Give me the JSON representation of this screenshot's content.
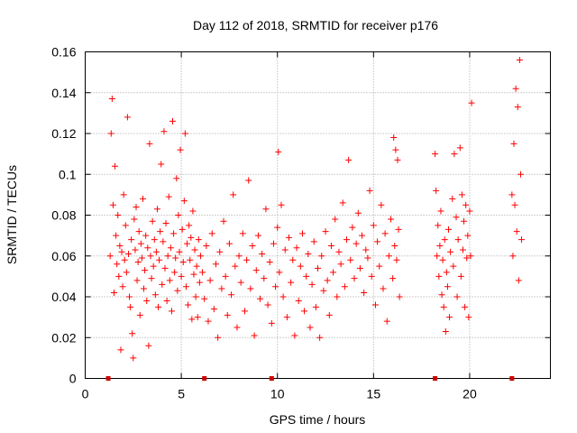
{
  "chart_data": {
    "type": "scatter",
    "title": "Day 112 of 2018, SRMTID for receiver p176",
    "xlabel": "GPS time / hours",
    "ylabel": "SRMTID / TECUs",
    "xlim": [
      0,
      24.2
    ],
    "ylim": [
      0,
      0.16
    ],
    "xticks": [
      0,
      5,
      10,
      15,
      20
    ],
    "xtick_labels": [
      "0",
      "5",
      "10",
      "15",
      "20"
    ],
    "yticks": [
      0,
      0.02,
      0.04,
      0.06,
      0.08,
      0.1,
      0.12,
      0.14,
      0.16
    ],
    "ytick_labels": [
      "0",
      "0.02",
      "0.04",
      "0.06",
      "0.08",
      "0.1",
      "0.12",
      "0.14",
      "0.16"
    ],
    "grid": true,
    "marker": "plus",
    "color": "#ff0000",
    "gap_marker_color": "#cc0000",
    "gap_markers_x": [
      1.2,
      6.2,
      9.7,
      18.2,
      22.2
    ],
    "series": [
      {
        "name": "SRMTID",
        "points": [
          [
            1.3,
            0.06
          ],
          [
            1.35,
            0.12
          ],
          [
            1.4,
            0.137
          ],
          [
            1.45,
            0.085
          ],
          [
            1.5,
            0.042
          ],
          [
            1.55,
            0.104
          ],
          [
            1.6,
            0.07
          ],
          [
            1.65,
            0.056
          ],
          [
            1.7,
            0.08
          ],
          [
            1.75,
            0.05
          ],
          [
            1.8,
            0.065
          ],
          [
            1.85,
            0.014
          ],
          [
            1.9,
            0.062
          ],
          [
            1.95,
            0.045
          ],
          [
            2.0,
            0.09
          ],
          [
            2.05,
            0.058
          ],
          [
            2.1,
            0.075
          ],
          [
            2.15,
            0.052
          ],
          [
            2.2,
            0.128
          ],
          [
            2.25,
            0.061
          ],
          [
            2.3,
            0.04
          ],
          [
            2.35,
            0.035
          ],
          [
            2.4,
            0.068
          ],
          [
            2.45,
            0.022
          ],
          [
            2.5,
            0.01
          ],
          [
            2.55,
            0.078
          ],
          [
            2.6,
            0.063
          ],
          [
            2.65,
            0.084
          ],
          [
            2.7,
            0.048
          ],
          [
            2.75,
            0.057
          ],
          [
            2.8,
            0.072
          ],
          [
            2.85,
            0.031
          ],
          [
            2.9,
            0.066
          ],
          [
            2.95,
            0.059
          ],
          [
            3.0,
            0.088
          ],
          [
            3.05,
            0.044
          ],
          [
            3.1,
            0.053
          ],
          [
            3.15,
            0.07
          ],
          [
            3.2,
            0.038
          ],
          [
            3.25,
            0.064
          ],
          [
            3.3,
            0.016
          ],
          [
            3.35,
            0.115
          ],
          [
            3.4,
            0.06
          ],
          [
            3.45,
            0.049
          ],
          [
            3.5,
            0.077
          ],
          [
            3.55,
            0.055
          ],
          [
            3.6,
            0.068
          ],
          [
            3.65,
            0.041
          ],
          [
            3.7,
            0.062
          ],
          [
            3.75,
            0.083
          ],
          [
            3.8,
            0.035
          ],
          [
            3.85,
            0.058
          ],
          [
            3.9,
            0.072
          ],
          [
            3.95,
            0.105
          ],
          [
            4.0,
            0.046
          ],
          [
            4.05,
            0.067
          ],
          [
            4.1,
            0.121
          ],
          [
            4.15,
            0.054
          ],
          [
            4.2,
            0.076
          ],
          [
            4.25,
            0.038
          ],
          [
            4.3,
            0.06
          ],
          [
            4.35,
            0.089
          ],
          [
            4.4,
            0.048
          ],
          [
            4.45,
            0.064
          ],
          [
            4.5,
            0.033
          ],
          [
            4.55,
            0.126
          ],
          [
            4.6,
            0.071
          ],
          [
            4.65,
            0.052
          ],
          [
            4.7,
            0.059
          ],
          [
            4.75,
            0.098
          ],
          [
            4.8,
            0.043
          ],
          [
            4.85,
            0.08
          ],
          [
            4.9,
            0.062
          ],
          [
            4.95,
            0.112
          ],
          [
            5.0,
            0.05
          ],
          [
            5.05,
            0.073
          ],
          [
            5.1,
            0.057
          ],
          [
            5.15,
            0.087
          ],
          [
            5.2,
            0.12
          ],
          [
            5.25,
            0.045
          ],
          [
            5.3,
            0.066
          ],
          [
            5.35,
            0.036
          ],
          [
            5.4,
            0.075
          ],
          [
            5.45,
            0.058
          ],
          [
            5.5,
            0.069
          ],
          [
            5.55,
            0.029
          ],
          [
            5.6,
            0.082
          ],
          [
            5.65,
            0.051
          ],
          [
            5.7,
            0.063
          ],
          [
            5.75,
            0.04
          ],
          [
            5.8,
            0.055
          ],
          [
            5.85,
            0.03
          ],
          [
            5.9,
            0.068
          ],
          [
            5.95,
            0.047
          ],
          [
            6.0,
            0.06
          ],
          [
            6.1,
            0.052
          ],
          [
            6.2,
            0.039
          ],
          [
            6.3,
            0.065
          ],
          [
            6.4,
            0.028
          ],
          [
            6.5,
            0.048
          ],
          [
            6.6,
            0.071
          ],
          [
            6.7,
            0.034
          ],
          [
            6.8,
            0.056
          ],
          [
            6.9,
            0.02
          ],
          [
            7.0,
            0.062
          ],
          [
            7.1,
            0.044
          ],
          [
            7.2,
            0.077
          ],
          [
            7.3,
            0.05
          ],
          [
            7.4,
            0.031
          ],
          [
            7.5,
            0.066
          ],
          [
            7.6,
            0.041
          ],
          [
            7.7,
            0.09
          ],
          [
            7.8,
            0.055
          ],
          [
            7.9,
            0.025
          ],
          [
            8.0,
            0.06
          ],
          [
            8.1,
            0.047
          ],
          [
            8.2,
            0.071
          ],
          [
            8.3,
            0.033
          ],
          [
            8.4,
            0.058
          ],
          [
            8.5,
            0.097
          ],
          [
            8.6,
            0.044
          ],
          [
            8.7,
            0.065
          ],
          [
            8.8,
            0.021
          ],
          [
            8.9,
            0.053
          ],
          [
            9.0,
            0.07
          ],
          [
            9.1,
            0.039
          ],
          [
            9.2,
            0.061
          ],
          [
            9.3,
            0.049
          ],
          [
            9.4,
            0.083
          ],
          [
            9.5,
            0.036
          ],
          [
            9.6,
            0.057
          ],
          [
            9.7,
            0.027
          ],
          [
            9.8,
            0.066
          ],
          [
            9.9,
            0.045
          ],
          [
            10.0,
            0.074
          ],
          [
            10.05,
            0.111
          ],
          [
            10.1,
            0.052
          ],
          [
            10.2,
            0.085
          ],
          [
            10.3,
            0.04
          ],
          [
            10.4,
            0.063
          ],
          [
            10.5,
            0.03
          ],
          [
            10.6,
            0.069
          ],
          [
            10.7,
            0.047
          ],
          [
            10.8,
            0.058
          ],
          [
            10.9,
            0.021
          ],
          [
            11.0,
            0.064
          ],
          [
            11.1,
            0.038
          ],
          [
            11.2,
            0.055
          ],
          [
            11.3,
            0.071
          ],
          [
            11.4,
            0.033
          ],
          [
            11.5,
            0.05
          ],
          [
            11.6,
            0.061
          ],
          [
            11.7,
            0.025
          ],
          [
            11.8,
            0.046
          ],
          [
            11.9,
            0.067
          ],
          [
            12.0,
            0.035
          ],
          [
            12.1,
            0.054
          ],
          [
            12.2,
            0.02
          ],
          [
            12.3,
            0.06
          ],
          [
            12.4,
            0.043
          ],
          [
            12.5,
            0.072
          ],
          [
            12.6,
            0.048
          ],
          [
            12.7,
            0.031
          ],
          [
            12.8,
            0.065
          ],
          [
            12.9,
            0.052
          ],
          [
            13.0,
            0.078
          ],
          [
            13.1,
            0.04
          ],
          [
            13.2,
            0.062
          ],
          [
            13.3,
            0.056
          ],
          [
            13.4,
            0.086
          ],
          [
            13.5,
            0.045
          ],
          [
            13.6,
            0.068
          ],
          [
            13.7,
            0.107
          ],
          [
            13.8,
            0.058
          ],
          [
            13.9,
            0.074
          ],
          [
            14.0,
            0.049
          ],
          [
            14.1,
            0.066
          ],
          [
            14.2,
            0.081
          ],
          [
            14.3,
            0.054
          ],
          [
            14.4,
            0.07
          ],
          [
            14.5,
            0.042
          ],
          [
            14.6,
            0.063
          ],
          [
            14.7,
            0.059
          ],
          [
            14.8,
            0.092
          ],
          [
            14.9,
            0.05
          ],
          [
            15.0,
            0.075
          ],
          [
            15.1,
            0.036
          ],
          [
            15.2,
            0.067
          ],
          [
            15.3,
            0.055
          ],
          [
            15.4,
            0.085
          ],
          [
            15.5,
            0.044
          ],
          [
            15.6,
            0.071
          ],
          [
            15.7,
            0.028
          ],
          [
            15.8,
            0.06
          ],
          [
            15.9,
            0.078
          ],
          [
            16.0,
            0.049
          ],
          [
            16.05,
            0.118
          ],
          [
            16.1,
            0.065
          ],
          [
            16.15,
            0.112
          ],
          [
            16.2,
            0.058
          ],
          [
            16.25,
            0.107
          ],
          [
            16.3,
            0.073
          ],
          [
            16.35,
            0.04
          ],
          [
            18.2,
            0.11
          ],
          [
            18.25,
            0.092
          ],
          [
            18.3,
            0.06
          ],
          [
            18.35,
            0.075
          ],
          [
            18.4,
            0.05
          ],
          [
            18.45,
            0.065
          ],
          [
            18.5,
            0.082
          ],
          [
            18.55,
            0.041
          ],
          [
            18.6,
            0.058
          ],
          [
            18.65,
            0.035
          ],
          [
            18.7,
            0.068
          ],
          [
            18.75,
            0.023
          ],
          [
            18.8,
            0.052
          ],
          [
            18.85,
            0.045
          ],
          [
            18.9,
            0.073
          ],
          [
            18.95,
            0.03
          ],
          [
            19.0,
            0.062
          ],
          [
            19.1,
            0.088
          ],
          [
            19.15,
            0.055
          ],
          [
            19.2,
            0.11
          ],
          [
            19.3,
            0.079
          ],
          [
            19.35,
            0.04
          ],
          [
            19.4,
            0.068
          ],
          [
            19.5,
            0.113
          ],
          [
            19.55,
            0.05
          ],
          [
            19.6,
            0.09
          ],
          [
            19.65,
            0.063
          ],
          [
            19.7,
            0.077
          ],
          [
            19.75,
            0.035
          ],
          [
            19.8,
            0.085
          ],
          [
            19.85,
            0.059
          ],
          [
            19.9,
            0.07
          ],
          [
            19.95,
            0.03
          ],
          [
            20.0,
            0.082
          ],
          [
            20.05,
            0.06
          ],
          [
            20.1,
            0.135
          ],
          [
            22.2,
            0.09
          ],
          [
            22.25,
            0.06
          ],
          [
            22.3,
            0.115
          ],
          [
            22.35,
            0.085
          ],
          [
            22.4,
            0.142
          ],
          [
            22.45,
            0.072
          ],
          [
            22.5,
            0.133
          ],
          [
            22.55,
            0.048
          ],
          [
            22.6,
            0.156
          ],
          [
            22.65,
            0.1
          ],
          [
            22.7,
            0.068
          ]
        ]
      }
    ]
  }
}
